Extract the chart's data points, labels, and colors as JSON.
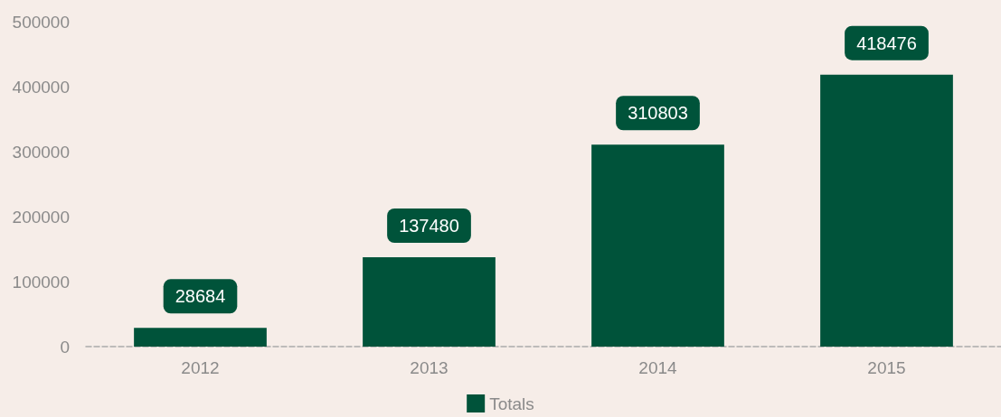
{
  "chart_data": {
    "type": "bar",
    "categories": [
      "2012",
      "2013",
      "2014",
      "2015"
    ],
    "series": [
      {
        "name": "Totals",
        "color": "#00533a",
        "values": [
          28684,
          137480,
          310803,
          418476
        ]
      }
    ],
    "ylim": [
      0,
      500000
    ],
    "yticks": [
      0,
      100000,
      200000,
      300000,
      400000,
      500000
    ],
    "grid": false,
    "legend": "bottom",
    "data_labels": true
  }
}
